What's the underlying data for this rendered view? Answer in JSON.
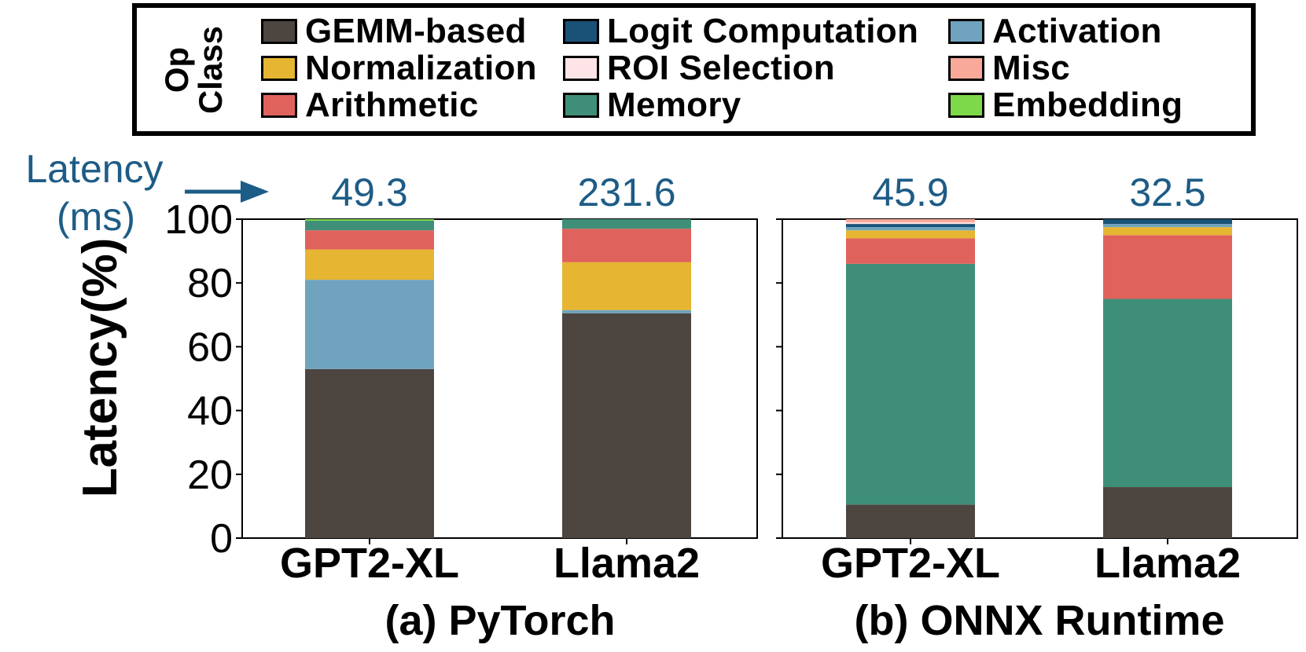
{
  "legend": {
    "title_line1": "Op",
    "title_line2": "Class",
    "items": [
      {
        "key": "gemm",
        "label": "GEMM-based",
        "color": "#4d4540"
      },
      {
        "key": "logit",
        "label": "Logit Computation",
        "color": "#1a5276"
      },
      {
        "key": "activation",
        "label": "Activation",
        "color": "#6fa3be"
      },
      {
        "key": "normalization",
        "label": "Normalization",
        "color": "#e6b531"
      },
      {
        "key": "roi",
        "label": "ROI Selection",
        "color": "#fde4e6"
      },
      {
        "key": "misc",
        "label": "Misc",
        "color": "#f8a99a"
      },
      {
        "key": "arithmetic",
        "label": "Arithmetic",
        "color": "#e0625d"
      },
      {
        "key": "memory",
        "label": "Memory",
        "color": "#3f8f78"
      },
      {
        "key": "embedding",
        "label": "Embedding",
        "color": "#7ed94a"
      }
    ]
  },
  "latency_label_line1": "Latency",
  "latency_label_line2": "(ms)",
  "chart_data": [
    {
      "type": "bar",
      "stacked": true,
      "title": "(a) PyTorch",
      "ylabel": "Latency(%)",
      "ylim": [
        0,
        100
      ],
      "yticks": [
        0,
        20,
        40,
        60,
        80,
        100
      ],
      "categories": [
        "GPT2-XL",
        "Llama2"
      ],
      "latency_ms": [
        "49.3",
        "231.6"
      ],
      "series": [
        {
          "name": "GEMM-based",
          "color": "#4d4540",
          "values": [
            53,
            70.5
          ]
        },
        {
          "name": "Activation",
          "color": "#6fa3be",
          "values": [
            28,
            1
          ]
        },
        {
          "name": "Normalization",
          "color": "#e6b531",
          "values": [
            9.5,
            15
          ]
        },
        {
          "name": "Arithmetic",
          "color": "#e0625d",
          "values": [
            6,
            10.5
          ]
        },
        {
          "name": "Memory",
          "color": "#3f8f78",
          "values": [
            3,
            3
          ]
        },
        {
          "name": "Embedding",
          "color": "#7ed94a",
          "values": [
            0.5,
            0
          ]
        }
      ]
    },
    {
      "type": "bar",
      "stacked": true,
      "title": "(b) ONNX Runtime",
      "ylim": [
        0,
        100
      ],
      "yticks": [
        0,
        20,
        40,
        60,
        80,
        100
      ],
      "categories": [
        "GPT2-XL",
        "Llama2"
      ],
      "latency_ms": [
        "45.9",
        "32.5"
      ],
      "series": [
        {
          "name": "GEMM-based",
          "color": "#4d4540",
          "values": [
            10.5,
            16
          ]
        },
        {
          "name": "Memory",
          "color": "#3f8f78",
          "values": [
            75.5,
            59
          ]
        },
        {
          "name": "Arithmetic",
          "color": "#e0625d",
          "values": [
            8,
            20
          ]
        },
        {
          "name": "Normalization",
          "color": "#e6b531",
          "values": [
            2.5,
            2.5
          ]
        },
        {
          "name": "Activation",
          "color": "#6fa3be",
          "values": [
            1,
            1
          ]
        },
        {
          "name": "Logit Computation",
          "color": "#1a5276",
          "values": [
            1,
            1.5
          ]
        },
        {
          "name": "ROI Selection",
          "color": "#fde4e6",
          "values": [
            0.5,
            0
          ]
        },
        {
          "name": "Misc",
          "color": "#f8a99a",
          "values": [
            1,
            0
          ]
        }
      ]
    }
  ]
}
